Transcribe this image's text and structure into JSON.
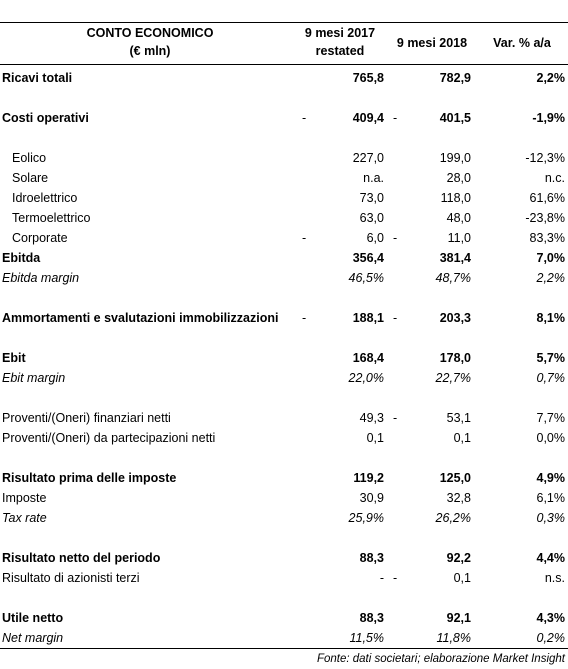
{
  "header": {
    "label": [
      "CONTO ECONOMICO",
      "(€ mln)"
    ],
    "y2017": [
      "9 mesi 2017",
      "restated"
    ],
    "y2018": "9 mesi 2018",
    "var": "Var. % a/a"
  },
  "table": {
    "rows": [
      {
        "label": "Ricavi totali",
        "y2017": "765,8",
        "y2018": "782,9",
        "var": "2,2%",
        "style": "bold"
      },
      {
        "label": "Costi operativi",
        "pre2017": "-",
        "y2017": "409,4",
        "pre2018": "-",
        "y2018": "401,5",
        "var": "-1,9%",
        "style": "bold",
        "gap_before": true
      },
      {
        "label": "Eolico",
        "y2017": "227,0",
        "y2018": "199,0",
        "var": "-12,3%",
        "style": "indent",
        "gap_before": true
      },
      {
        "label": "Solare",
        "y2017": "n.a.",
        "y2018": "28,0",
        "var": "n.c.",
        "style": "indent"
      },
      {
        "label": "Idroelettrico",
        "y2017": "73,0",
        "y2018": "118,0",
        "var": "61,6%",
        "style": "indent"
      },
      {
        "label": "Termoelettrico",
        "y2017": "63,0",
        "y2018": "48,0",
        "var": "-23,8%",
        "style": "indent"
      },
      {
        "label": "Corporate",
        "pre2017": "-",
        "y2017": "6,0",
        "pre2018": "-",
        "y2018": "11,0",
        "var": "83,3%",
        "style": "indent"
      },
      {
        "label": "Ebitda",
        "y2017": "356,4",
        "y2018": "381,4",
        "var": "7,0%",
        "style": "bold"
      },
      {
        "label": "Ebitda margin",
        "y2017": "46,5%",
        "y2018": "48,7%",
        "var": "2,2%",
        "style": "italic"
      },
      {
        "label": "Ammortamenti e svalutazioni immobilizzazioni",
        "pre2017": "-",
        "y2017": "188,1",
        "pre2018": "-",
        "y2018": "203,3",
        "var": "8,1%",
        "style": "bold",
        "gap_before": true
      },
      {
        "label": "Ebit",
        "y2017": "168,4",
        "y2018": "178,0",
        "var": "5,7%",
        "style": "bold",
        "gap_before": true
      },
      {
        "label": "Ebit margin",
        "y2017": "22,0%",
        "y2018": "22,7%",
        "var": "0,7%",
        "style": "italic"
      },
      {
        "label": "Proventi/(Oneri) finanziari netti",
        "y2017": "49,3",
        "pre2018": "-",
        "y2018": "53,1",
        "var": "7,7%",
        "style": "normal",
        "gap_before": true
      },
      {
        "label": "Proventi/(Oneri) da partecipazioni netti",
        "y2017": "0,1",
        "y2018": "0,1",
        "var": "0,0%",
        "style": "normal"
      },
      {
        "label": "Risultato prima delle imposte",
        "y2017": "119,2",
        "y2018": "125,0",
        "var": "4,9%",
        "style": "bold",
        "gap_before": true
      },
      {
        "label": "Imposte",
        "y2017": "30,9",
        "y2018": "32,8",
        "var": "6,1%",
        "style": "normal"
      },
      {
        "label": "Tax rate",
        "y2017": "25,9%",
        "y2018": "26,2%",
        "var": "0,3%",
        "style": "italic"
      },
      {
        "label": "Risultato netto del periodo",
        "y2017": "88,3",
        "y2018": "92,2",
        "var": "4,4%",
        "style": "bold",
        "gap_before": true
      },
      {
        "label": "Risultato di azionisti terzi",
        "y2017": "-",
        "pre2018": "-",
        "y2018": "0,1",
        "var": "n.s.",
        "style": "normal"
      },
      {
        "label": "Utile netto",
        "y2017": "88,3",
        "y2018": "92,1",
        "var": "4,3%",
        "style": "bold",
        "gap_before": true
      },
      {
        "label": "Net margin",
        "y2017": "11,5%",
        "y2018": "11,8%",
        "var": "0,2%",
        "style": "italic"
      }
    ]
  },
  "footer": {
    "source": "Fonte: dati societari; elaborazione Market Insight"
  }
}
